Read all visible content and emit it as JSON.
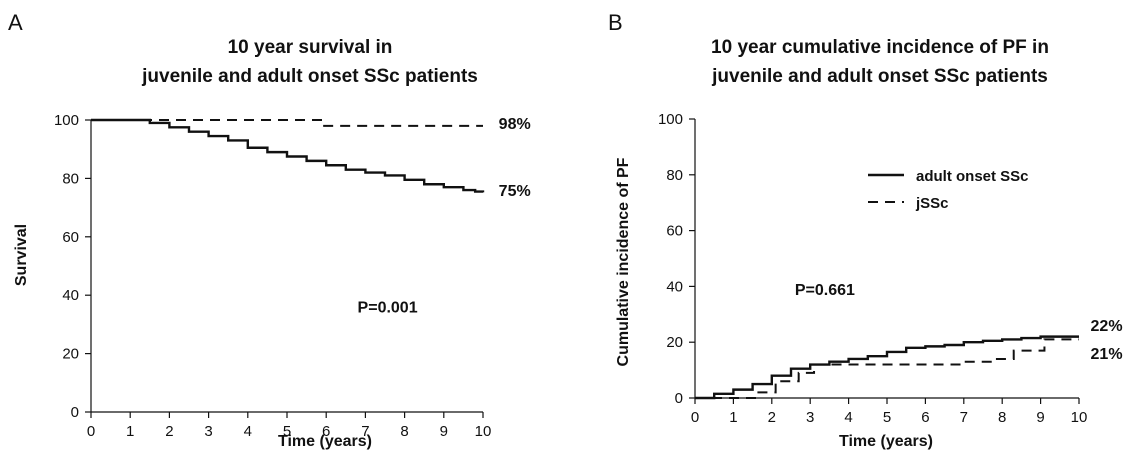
{
  "chart_data": [
    {
      "type": "line",
      "panel_label": "A",
      "title": [
        "10 year survival in",
        "juvenile and adult onset SSc patients"
      ],
      "xlabel": "Time (years)",
      "ylabel": "Survival",
      "xlim": [
        0,
        10
      ],
      "ylim": [
        0,
        100
      ],
      "xticks": [
        "0",
        "1",
        "2",
        "3",
        "4",
        "5",
        "6",
        "7",
        "8",
        "9",
        "10"
      ],
      "yticks": [
        "0",
        "20",
        "40",
        "60",
        "80",
        "100"
      ],
      "annotations": [
        {
          "id": "pval",
          "text": "P=0.001",
          "x": 6.8,
          "y": 34
        },
        {
          "id": "end-dashed",
          "text": "98%",
          "x": 10.4,
          "y": 97
        },
        {
          "id": "end-solid",
          "text": "75%",
          "x": 10.4,
          "y": 74
        }
      ],
      "series": [
        {
          "style": "dashed",
          "step": true,
          "x": [
            0,
            5.9,
            5.9,
            10
          ],
          "y": [
            100,
            100,
            98,
            98
          ]
        },
        {
          "style": "solid",
          "step": true,
          "x": [
            0,
            1.0,
            1.5,
            2.0,
            2.5,
            3.0,
            3.5,
            4.0,
            4.5,
            5.0,
            5.5,
            6.0,
            6.5,
            7.0,
            7.5,
            8.0,
            8.5,
            9.0,
            9.5,
            9.8,
            10.0
          ],
          "y": [
            100,
            100,
            99,
            97.5,
            96,
            94.5,
            93,
            90.5,
            89,
            87.5,
            86,
            84.5,
            83,
            82,
            81,
            79.5,
            78,
            77,
            76,
            75.5,
            75.2
          ]
        }
      ]
    },
    {
      "type": "line",
      "panel_label": "B",
      "title": [
        "10 year cumulative incidence of PF in",
        "juvenile and adult onset SSc patients"
      ],
      "xlabel": "Time (years)",
      "ylabel": "Cumulative incidence of PF",
      "xlim": [
        0,
        10
      ],
      "ylim": [
        0,
        100
      ],
      "xticks": [
        "0",
        "1",
        "2",
        "3",
        "4",
        "5",
        "6",
        "7",
        "8",
        "9",
        "10"
      ],
      "yticks": [
        "0",
        "20",
        "40",
        "60",
        "80",
        "100"
      ],
      "legend_position": "top-right",
      "annotations": [
        {
          "id": "pval",
          "text": "P=0.661",
          "x": 2.6,
          "y": 37
        },
        {
          "id": "end-solid",
          "text": "22%",
          "x": 10.3,
          "y": 24
        },
        {
          "id": "end-dashed",
          "text": "21%",
          "x": 10.3,
          "y": 14
        }
      ],
      "series": [
        {
          "name": "adult onset SSc",
          "style": "solid",
          "step": true,
          "x": [
            0,
            0.5,
            1.0,
            1.5,
            2.0,
            2.5,
            3.0,
            3.5,
            4.0,
            4.5,
            5.0,
            5.5,
            6.0,
            6.5,
            7.0,
            7.5,
            8.0,
            8.5,
            9.0,
            9.5,
            10.0
          ],
          "y": [
            0,
            1.5,
            3,
            5,
            8,
            10.5,
            12,
            13,
            14,
            15,
            16.5,
            18,
            18.5,
            19,
            20,
            20.5,
            21,
            21.5,
            22,
            22,
            22
          ]
        },
        {
          "name": "jSSc",
          "style": "dashed",
          "step": true,
          "x": [
            0,
            1.6,
            1.6,
            2.1,
            2.1,
            2.7,
            2.7,
            3.1,
            3.1,
            7.0,
            7.0,
            7.8,
            7.8,
            8.3,
            8.3,
            9.1,
            9.1,
            10.0
          ],
          "y": [
            0,
            0,
            2,
            2,
            6,
            6,
            9,
            9,
            12,
            12,
            13,
            13,
            14,
            14,
            17,
            17,
            21,
            21
          ]
        }
      ]
    }
  ]
}
